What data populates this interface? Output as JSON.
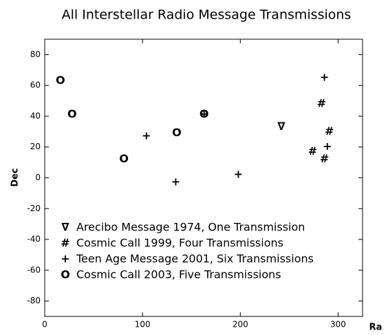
{
  "chart_data": {
    "type": "scatter",
    "title": "All Interstellar Radio Message Transmissions",
    "x_label": "Ra",
    "y_label": "Dec",
    "xlim": [
      0,
      325
    ],
    "ylim": [
      -90,
      90
    ],
    "xticks": [
      0,
      100,
      200,
      300
    ],
    "yticks": [
      -80,
      -60,
      -40,
      -20,
      0,
      20,
      40,
      60,
      80
    ],
    "grid": false,
    "legend": "lower left",
    "series": [
      {
        "name": "Arecibo Message 1974, One Transmission",
        "marker": "∇",
        "color": "#000000",
        "x": [
          242
        ],
        "y": [
          33
        ]
      },
      {
        "name": "Cosmic Call 1999, Four Transmissions",
        "marker": "#",
        "color": "#000000",
        "x": [
          283,
          291,
          274,
          286
        ],
        "y": [
          48,
          30,
          17,
          12
        ]
      },
      {
        "name": "Teen Age Message 2001, Six Transmissions",
        "marker": "+",
        "color": "#000000",
        "x": [
          286,
          104,
          134,
          198,
          289,
          163
        ],
        "y": [
          65,
          27,
          -3,
          2,
          20,
          41
        ]
      },
      {
        "name": "Cosmic Call 2003, Five Transmissions",
        "marker": "O",
        "color": "#000000",
        "x": [
          16,
          28,
          81,
          135,
          163
        ],
        "y": [
          63,
          41,
          12,
          29,
          41
        ]
      }
    ]
  }
}
